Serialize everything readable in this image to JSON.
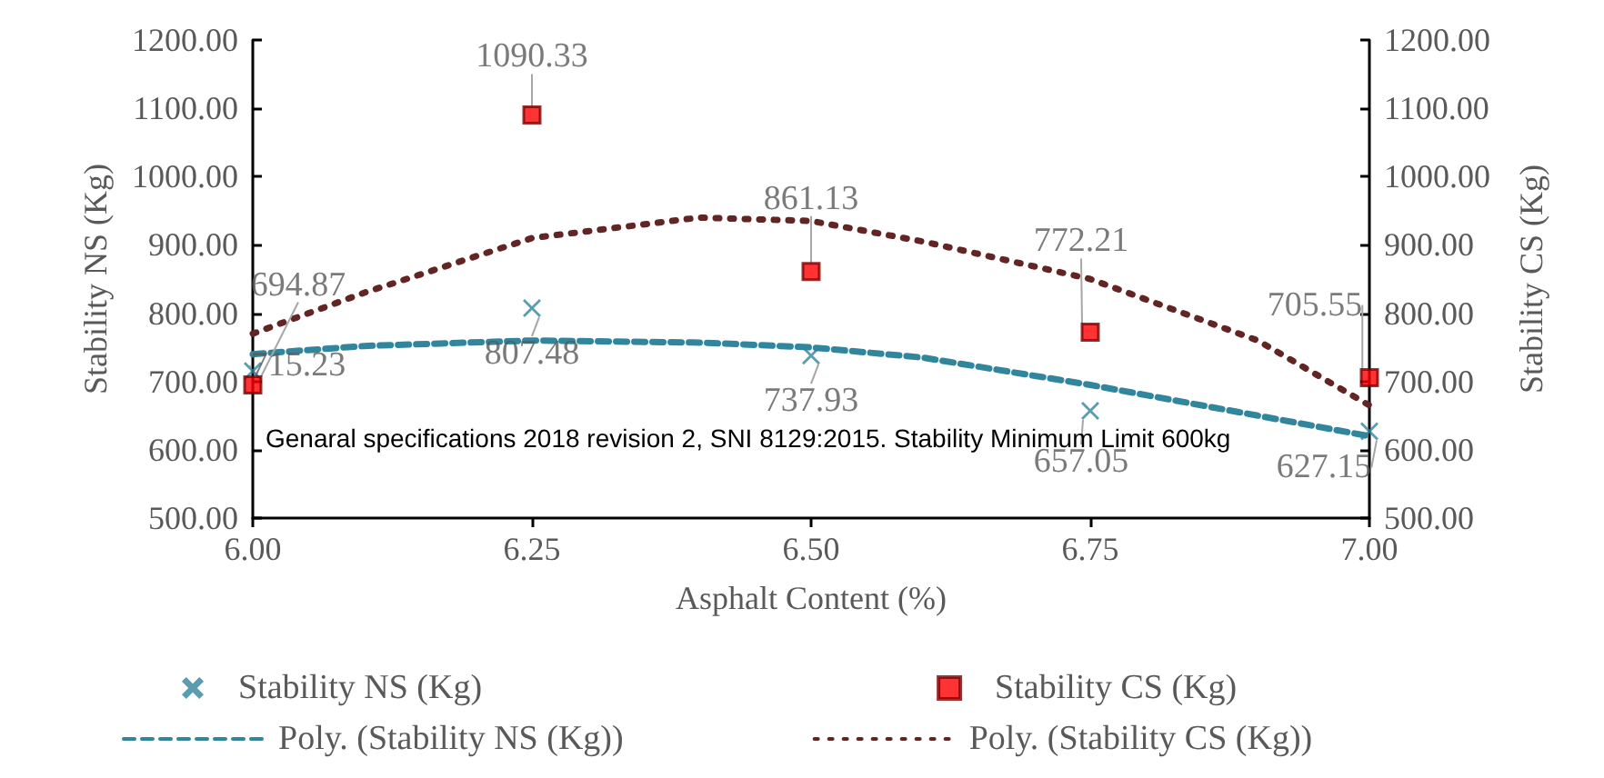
{
  "chart_data": {
    "type": "scatter",
    "xlabel": "Asphalt Content (%)",
    "ylabel": "Stability NS (Kg)",
    "y2label": "Stability CS (Kg)",
    "xlim": [
      6.0,
      7.0
    ],
    "xticks": [
      {
        "value": 6.0,
        "label": "6.00"
      },
      {
        "value": 6.25,
        "label": "6.25"
      },
      {
        "value": 6.5,
        "label": "6.50"
      },
      {
        "value": 6.75,
        "label": "6.75"
      },
      {
        "value": 7.0,
        "label": "7.00"
      }
    ],
    "ylim": [
      500,
      1200
    ],
    "yticks": [
      {
        "value": 500,
        "label": "500.00"
      },
      {
        "value": 600,
        "label": "600.00"
      },
      {
        "value": 700,
        "label": "700.00"
      },
      {
        "value": 800,
        "label": "800.00"
      },
      {
        "value": 900,
        "label": "900.00"
      },
      {
        "value": 1000,
        "label": "1000.00"
      },
      {
        "value": 1100,
        "label": "1100.00"
      },
      {
        "value": 1200,
        "label": "1200.00"
      }
    ],
    "y2lim": [
      500,
      1200
    ],
    "y2ticks": [
      {
        "value": 500,
        "label": "500.00"
      },
      {
        "value": 600,
        "label": "600.00"
      },
      {
        "value": 700,
        "label": "700.00"
      },
      {
        "value": 800,
        "label": "800.00"
      },
      {
        "value": 900,
        "label": "900.00"
      },
      {
        "value": 1000,
        "label": "1000.00"
      },
      {
        "value": 1100,
        "label": "1100.00"
      },
      {
        "value": 1200,
        "label": "1200.00"
      }
    ],
    "grid": false,
    "legend": "bottom",
    "annotations": [
      "Genaral specifications 2018 revision 2, SNI 8129:2015. Stability Minimum Limit 600kg"
    ],
    "series": [
      {
        "name": "Stability NS (Kg)",
        "marker": "cross",
        "color": "#31859c",
        "x": [
          6.0,
          6.25,
          6.5,
          6.75,
          7.0
        ],
        "values": [
          715.23,
          807.48,
          737.93,
          657.05,
          627.15
        ],
        "value_labels": [
          "715.23",
          "807.48",
          "737.93",
          "657.05",
          "627.15"
        ]
      },
      {
        "name": "Stability CS (Kg)",
        "marker": "square",
        "color": "#ff0000",
        "x": [
          6.0,
          6.25,
          6.5,
          6.75,
          7.0
        ],
        "values": [
          694.87,
          1090.33,
          861.13,
          772.21,
          705.55
        ],
        "value_labels": [
          "694.87",
          "1090.33",
          "861.13",
          "772.21",
          "705.55"
        ]
      },
      {
        "name": "Poly. (Stability NS (Kg))",
        "type": "line",
        "marker": "none",
        "line_style": "dashed",
        "color": "#31859c",
        "x": [
          6.0,
          6.1,
          6.25,
          6.4,
          6.5,
          6.6,
          6.75,
          6.9,
          7.0
        ],
        "values": [
          740,
          752,
          760,
          757,
          750,
          735,
          695,
          650,
          620
        ]
      },
      {
        "name": "Poly. (Stability CS (Kg))",
        "type": "line",
        "marker": "none",
        "line_style": "dotted",
        "color": "#632523",
        "x": [
          6.0,
          6.1,
          6.25,
          6.4,
          6.5,
          6.6,
          6.75,
          6.9,
          7.0
        ],
        "values": [
          770,
          830,
          910,
          940,
          935,
          905,
          850,
          760,
          665
        ]
      }
    ]
  }
}
